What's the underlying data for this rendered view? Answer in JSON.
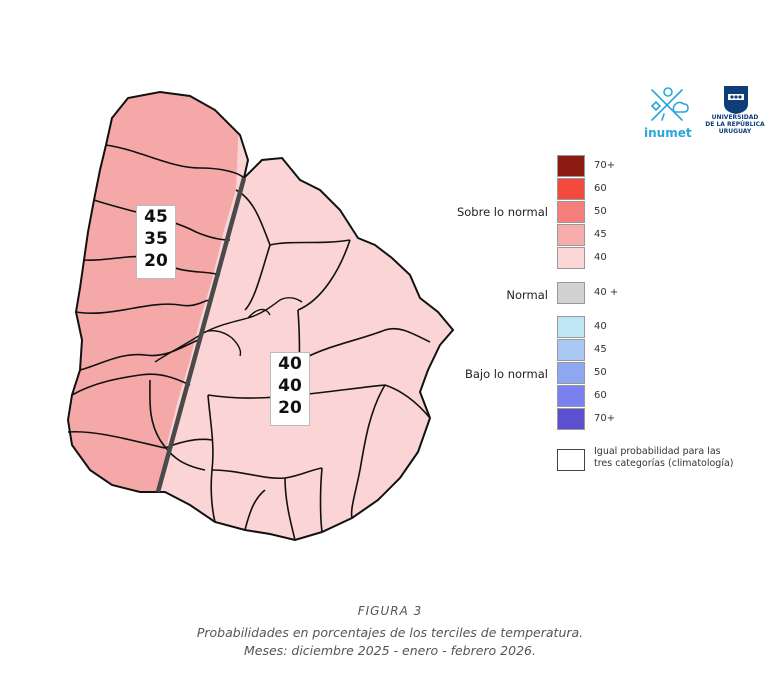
{
  "map": {
    "west_region": {
      "above": "45",
      "normal": "35",
      "below": "20",
      "color": "#f4a9a8"
    },
    "east_region": {
      "above": "40",
      "normal": "40",
      "below": "20",
      "color": "#fbd5d6"
    }
  },
  "logos": {
    "inumet": "inumet",
    "udelar_lines": [
      "UNIVERSIDAD",
      "DE LA REPÚBLICA",
      "URUGUAY"
    ]
  },
  "legend": {
    "above_label": "Sobre lo normal",
    "above_items": [
      {
        "label": "70+",
        "color": "#8b1a12"
      },
      {
        "label": "60",
        "color": "#f24a3d"
      },
      {
        "label": "50",
        "color": "#f57f7d"
      },
      {
        "label": "45",
        "color": "#f6adac"
      },
      {
        "label": "40",
        "color": "#fbd6d7"
      }
    ],
    "normal_label": "Normal",
    "normal_items": [
      {
        "label": "40 +",
        "color": "#d2d2d2"
      }
    ],
    "below_label": "Bajo lo normal",
    "below_items": [
      {
        "label": "40",
        "color": "#bfe6f5"
      },
      {
        "label": "45",
        "color": "#a9c9f4"
      },
      {
        "label": "50",
        "color": "#8ea7f1"
      },
      {
        "label": "60",
        "color": "#7a80ee"
      },
      {
        "label": "70+",
        "color": "#5a50d0"
      }
    ],
    "climatology_lines": [
      "Igual probabilidad para las",
      "tres categorías (climatología)"
    ]
  },
  "caption": {
    "figure": "FIGURA 3",
    "line1": "Probabilidades en porcentajes de los terciles de temperatura.",
    "line2": "Meses: diciembre 2025 - enero - febrero 2026."
  }
}
